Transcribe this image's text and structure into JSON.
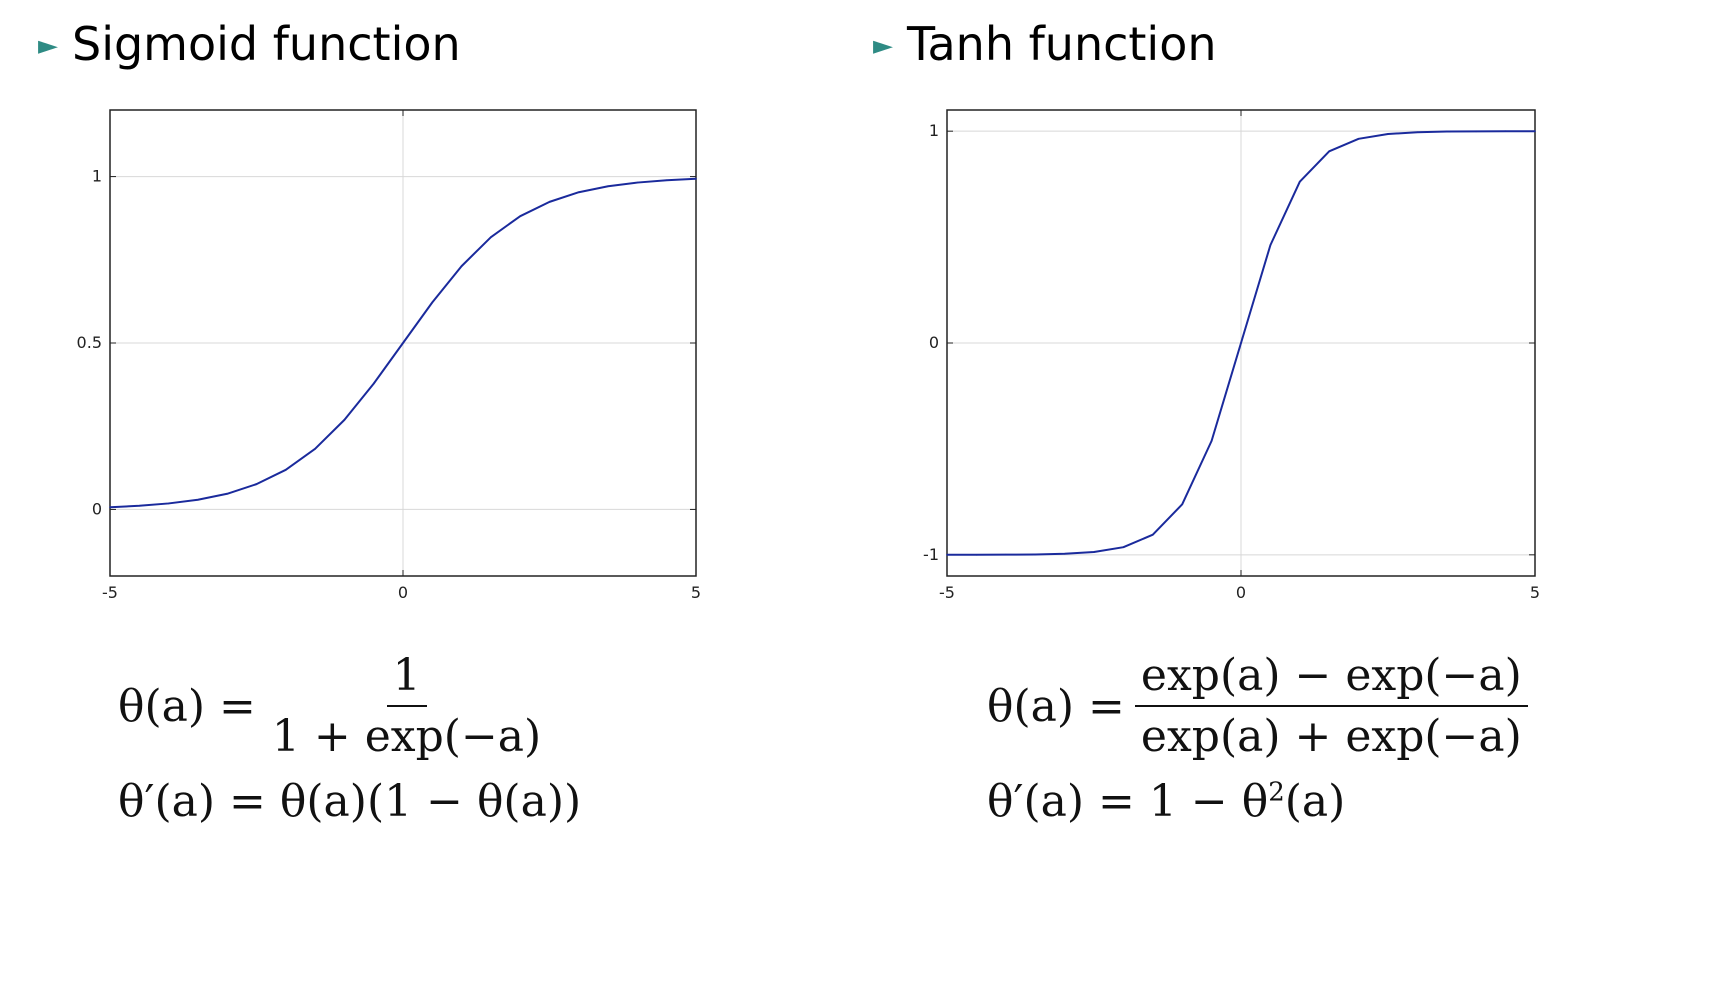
{
  "colors": {
    "bullet": "#2e8b84",
    "curve": "#1a2a9c",
    "grid": "#d8d8d8",
    "axis": "#222222"
  },
  "panels": [
    {
      "heading": "Sigmoid function",
      "formula": {
        "lhs1": "θ(a) =",
        "num": "1",
        "den": "1 + exp(−a)",
        "line2": "θ′(a) = θ(a)(1 − θ(a))"
      }
    },
    {
      "heading": "Tanh function",
      "formula": {
        "lhs1": "θ(a) =",
        "num": "exp(a) − exp(−a)",
        "den": "exp(a) + exp(−a)",
        "line2_pre": "θ′(a) = 1 − θ",
        "line2_sup": "2",
        "line2_post": "(a)"
      }
    }
  ],
  "chart_data": [
    {
      "type": "line",
      "function": "sigmoid",
      "x": [
        -5,
        -4.5,
        -4,
        -3.5,
        -3,
        -2.5,
        -2,
        -1.5,
        -1,
        -0.5,
        0,
        0.5,
        1,
        1.5,
        2,
        2.5,
        3,
        3.5,
        4,
        4.5,
        5
      ],
      "y": [
        0.0067,
        0.011,
        0.018,
        0.029,
        0.047,
        0.076,
        0.119,
        0.182,
        0.269,
        0.378,
        0.5,
        0.622,
        0.731,
        0.818,
        0.881,
        0.924,
        0.953,
        0.971,
        0.982,
        0.989,
        0.9933
      ],
      "xlim": [
        -5,
        5
      ],
      "ylim": [
        -0.2,
        1.2
      ],
      "xticks": [
        "-5",
        "0",
        "5"
      ],
      "xtick_values": [
        -5,
        0,
        5
      ],
      "yticks": [
        "0",
        "0.5",
        "1"
      ],
      "ytick_values": [
        0,
        0.5,
        1
      ],
      "grid": true
    },
    {
      "type": "line",
      "function": "tanh",
      "x": [
        -5,
        -4.5,
        -4,
        -3.5,
        -3,
        -2.5,
        -2,
        -1.5,
        -1,
        -0.5,
        0,
        0.5,
        1,
        1.5,
        2,
        2.5,
        3,
        3.5,
        4,
        4.5,
        5
      ],
      "y": [
        -0.9999,
        -0.9998,
        -0.9993,
        -0.9982,
        -0.9951,
        -0.9866,
        -0.964,
        -0.9051,
        -0.7616,
        -0.4621,
        0,
        0.4621,
        0.7616,
        0.9051,
        0.964,
        0.9866,
        0.9951,
        0.9982,
        0.9993,
        0.9998,
        0.9999
      ],
      "xlim": [
        -5,
        5
      ],
      "ylim": [
        -1.1,
        1.1
      ],
      "xticks": [
        "-5",
        "0",
        "5"
      ],
      "xtick_values": [
        -5,
        0,
        5
      ],
      "yticks": [
        "-1",
        "0",
        "1"
      ],
      "ytick_values": [
        -1,
        0,
        1
      ],
      "grid": true
    }
  ]
}
